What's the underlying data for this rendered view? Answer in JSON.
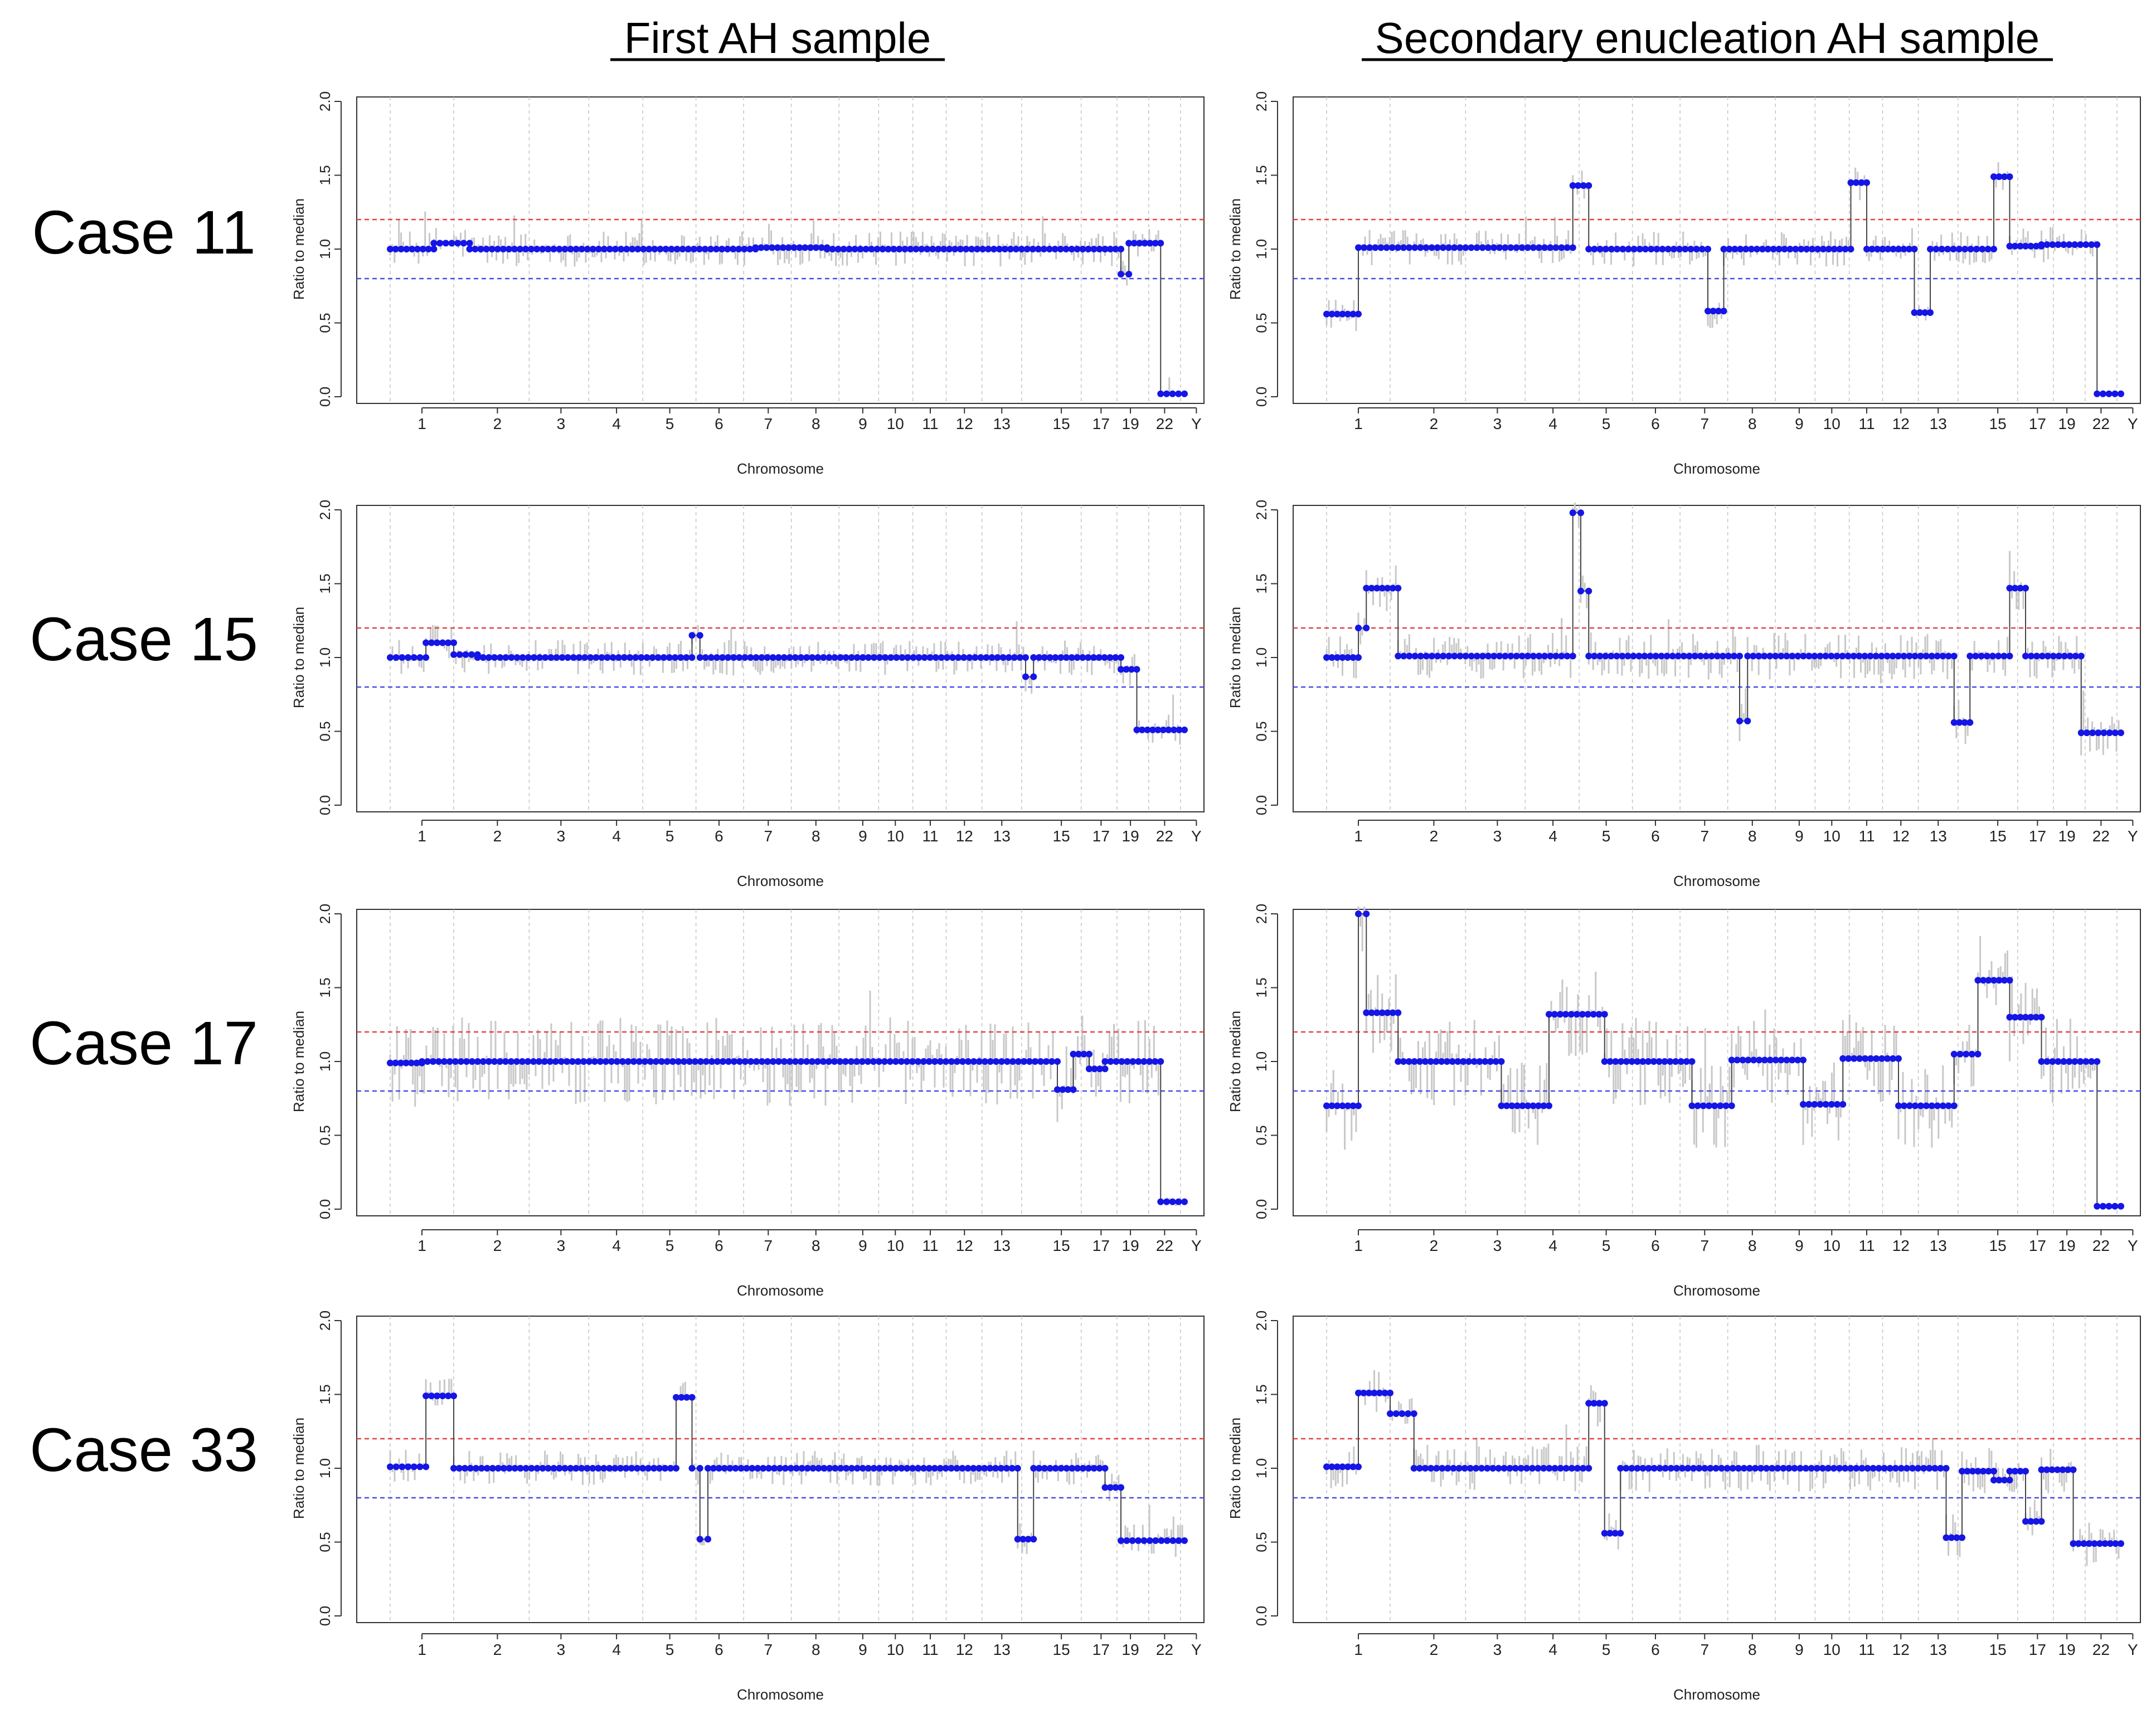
{
  "figure": {
    "column_titles": [
      "First AH sample",
      "Secondary enucleation AH sample"
    ],
    "case_labels": [
      "Case 11",
      "Case 15",
      "Case 17",
      "Case 33"
    ]
  },
  "colors": {
    "segment": "#1515e6",
    "noise": "#c8c8c8",
    "upper_threshold": "#e84040",
    "lower_threshold": "#4a4ae8",
    "axis": "#333333",
    "grid": "#c4c4c4"
  },
  "chart_data": [
    {
      "id": "case11-first",
      "type": "scatter",
      "case": "Case 11",
      "sample": "First AH sample",
      "xlabel": "Chromosome",
      "ylabel": "Ratio to median",
      "ylim": [
        0,
        2
      ],
      "yticks": [
        "0.0",
        "0.5",
        "1.0",
        "1.5",
        "2.0"
      ],
      "thresholds": {
        "upper": 1.2,
        "lower": 0.8
      },
      "noise_level": "low",
      "x_tick_labels": [
        "1",
        "2",
        "3",
        "4",
        "5",
        "6",
        "7",
        "8",
        "9",
        "10",
        "11",
        "12",
        "13",
        "15",
        "17",
        "19",
        "22",
        "Y"
      ],
      "segments": [
        [
          0,
          0.055,
          1.0
        ],
        [
          0.055,
          0.1,
          1.04
        ],
        [
          0.1,
          0.46,
          1.0
        ],
        [
          0.46,
          0.55,
          1.01
        ],
        [
          0.55,
          0.9,
          1.0
        ],
        [
          0.9,
          0.92,
          1.0
        ],
        [
          0.92,
          0.93,
          0.83
        ],
        [
          0.93,
          0.97,
          1.04
        ],
        [
          0.97,
          1.0,
          0.02
        ]
      ]
    },
    {
      "id": "case11-secondary",
      "type": "scatter",
      "case": "Case 11",
      "sample": "Secondary enucleation AH sample",
      "xlabel": "Chromosome",
      "ylabel": "Ratio to median",
      "ylim": [
        0,
        2
      ],
      "yticks": [
        "0.0",
        "0.5",
        "1.0",
        "1.5",
        "2.0"
      ],
      "thresholds": {
        "upper": 1.2,
        "lower": 0.8
      },
      "noise_level": "low",
      "x_tick_labels": [
        "1",
        "2",
        "3",
        "4",
        "5",
        "6",
        "7",
        "8",
        "9",
        "10",
        "11",
        "12",
        "13",
        "15",
        "17",
        "19",
        "22",
        "Y"
      ],
      "segments": [
        [
          0,
          0.04,
          0.56
        ],
        [
          0.04,
          0.31,
          1.01
        ],
        [
          0.31,
          0.33,
          1.43
        ],
        [
          0.33,
          0.48,
          1.0
        ],
        [
          0.48,
          0.5,
          0.58
        ],
        [
          0.5,
          0.66,
          1.0
        ],
        [
          0.66,
          0.68,
          1.45
        ],
        [
          0.68,
          0.7,
          1.0
        ],
        [
          0.7,
          0.74,
          1.0
        ],
        [
          0.74,
          0.76,
          0.57
        ],
        [
          0.76,
          0.84,
          1.0
        ],
        [
          0.84,
          0.86,
          1.49
        ],
        [
          0.86,
          0.9,
          1.02
        ],
        [
          0.9,
          0.97,
          1.03
        ],
        [
          0.97,
          1.0,
          0.02
        ]
      ]
    },
    {
      "id": "case15-first",
      "type": "scatter",
      "case": "Case 15",
      "sample": "First AH sample",
      "xlabel": "Chromosome",
      "ylabel": "Ratio to median",
      "ylim": [
        0,
        2
      ],
      "yticks": [
        "0.0",
        "0.5",
        "1.0",
        "1.5",
        "2.0"
      ],
      "thresholds": {
        "upper": 1.2,
        "lower": 0.8
      },
      "noise_level": "low",
      "x_tick_labels": [
        "1",
        "2",
        "3",
        "4",
        "5",
        "6",
        "7",
        "8",
        "9",
        "10",
        "11",
        "12",
        "13",
        "15",
        "17",
        "19",
        "22",
        "Y"
      ],
      "segments": [
        [
          0,
          0.045,
          1.0
        ],
        [
          0.045,
          0.08,
          1.1
        ],
        [
          0.08,
          0.11,
          1.02
        ],
        [
          0.11,
          0.38,
          1.0
        ],
        [
          0.38,
          0.39,
          1.15
        ],
        [
          0.39,
          0.8,
          1.0
        ],
        [
          0.8,
          0.81,
          0.87
        ],
        [
          0.81,
          0.92,
          1.0
        ],
        [
          0.92,
          0.94,
          0.92
        ],
        [
          0.94,
          1.0,
          0.51
        ]
      ]
    },
    {
      "id": "case15-secondary",
      "type": "scatter",
      "case": "Case 15",
      "sample": "Secondary enucleation AH sample",
      "xlabel": "Chromosome",
      "ylabel": "Ratio to median",
      "ylim": [
        0,
        2
      ],
      "yticks": [
        "0.0",
        "0.5",
        "1.0",
        "1.5",
        "2.0"
      ],
      "thresholds": {
        "upper": 1.2,
        "lower": 0.8
      },
      "noise_level": "medium",
      "x_tick_labels": [
        "1",
        "2",
        "3",
        "4",
        "5",
        "6",
        "7",
        "8",
        "9",
        "10",
        "11",
        "12",
        "13",
        "15",
        "17",
        "19",
        "22",
        "Y"
      ],
      "segments": [
        [
          0,
          0.04,
          1.0
        ],
        [
          0.04,
          0.05,
          1.2
        ],
        [
          0.05,
          0.09,
          1.47
        ],
        [
          0.09,
          0.31,
          1.01
        ],
        [
          0.31,
          0.32,
          1.98
        ],
        [
          0.32,
          0.33,
          1.45
        ],
        [
          0.33,
          0.52,
          1.01
        ],
        [
          0.52,
          0.53,
          0.57
        ],
        [
          0.53,
          0.79,
          1.01
        ],
        [
          0.79,
          0.81,
          0.56
        ],
        [
          0.81,
          0.86,
          1.01
        ],
        [
          0.86,
          0.88,
          1.47
        ],
        [
          0.88,
          0.95,
          1.01
        ],
        [
          0.95,
          1.0,
          0.49
        ]
      ]
    },
    {
      "id": "case17-first",
      "type": "scatter",
      "case": "Case 17",
      "sample": "First AH sample",
      "xlabel": "Chromosome",
      "ylabel": "Ratio to median",
      "ylim": [
        0,
        2
      ],
      "yticks": [
        "0.0",
        "0.5",
        "1.0",
        "1.5",
        "2.0"
      ],
      "thresholds": {
        "upper": 1.2,
        "lower": 0.8
      },
      "noise_level": "high",
      "x_tick_labels": [
        "1",
        "2",
        "3",
        "4",
        "5",
        "6",
        "7",
        "8",
        "9",
        "10",
        "11",
        "12",
        "13",
        "15",
        "17",
        "19",
        "22",
        "Y"
      ],
      "segments": [
        [
          0,
          0.04,
          0.99
        ],
        [
          0.04,
          0.84,
          1.0
        ],
        [
          0.84,
          0.86,
          0.81
        ],
        [
          0.86,
          0.88,
          1.05
        ],
        [
          0.88,
          0.9,
          0.95
        ],
        [
          0.9,
          0.97,
          1.0
        ],
        [
          0.97,
          1.0,
          0.05
        ]
      ]
    },
    {
      "id": "case17-secondary",
      "type": "scatter",
      "case": "Case 17",
      "sample": "Secondary enucleation AH sample",
      "xlabel": "Chromosome",
      "ylabel": "Ratio to median",
      "ylim": [
        0,
        2
      ],
      "yticks": [
        "0.0",
        "0.5",
        "1.0",
        "1.5",
        "2.0"
      ],
      "thresholds": {
        "upper": 1.2,
        "lower": 0.8
      },
      "noise_level": "high",
      "x_tick_labels": [
        "1",
        "2",
        "3",
        "4",
        "5",
        "6",
        "7",
        "8",
        "9",
        "10",
        "11",
        "12",
        "13",
        "15",
        "17",
        "19",
        "22",
        "Y"
      ],
      "segments": [
        [
          0,
          0.04,
          0.7
        ],
        [
          0.04,
          0.05,
          2.0
        ],
        [
          0.05,
          0.09,
          1.33
        ],
        [
          0.09,
          0.22,
          1.0
        ],
        [
          0.22,
          0.28,
          0.7
        ],
        [
          0.28,
          0.35,
          1.32
        ],
        [
          0.35,
          0.46,
          1.0
        ],
        [
          0.46,
          0.51,
          0.7
        ],
        [
          0.51,
          0.6,
          1.01
        ],
        [
          0.6,
          0.65,
          0.71
        ],
        [
          0.65,
          0.72,
          1.02
        ],
        [
          0.72,
          0.79,
          0.7
        ],
        [
          0.79,
          0.82,
          1.05
        ],
        [
          0.82,
          0.86,
          1.55
        ],
        [
          0.86,
          0.9,
          1.3
        ],
        [
          0.9,
          0.97,
          1.0
        ],
        [
          0.97,
          1.0,
          0.02
        ]
      ]
    },
    {
      "id": "case33-first",
      "type": "scatter",
      "case": "Case 33",
      "sample": "First AH sample",
      "xlabel": "Chromosome",
      "ylabel": "Ratio to median",
      "ylim": [
        0,
        2
      ],
      "yticks": [
        "0.0",
        "0.5",
        "1.0",
        "1.5",
        "2.0"
      ],
      "thresholds": {
        "upper": 1.2,
        "lower": 0.8
      },
      "noise_level": "low",
      "x_tick_labels": [
        "1",
        "2",
        "3",
        "4",
        "5",
        "6",
        "7",
        "8",
        "9",
        "10",
        "11",
        "12",
        "13",
        "15",
        "17",
        "19",
        "22",
        "Y"
      ],
      "segments": [
        [
          0,
          0.045,
          1.01
        ],
        [
          0.045,
          0.08,
          1.49
        ],
        [
          0.08,
          0.36,
          1.0
        ],
        [
          0.36,
          0.38,
          1.48
        ],
        [
          0.38,
          0.39,
          1.0
        ],
        [
          0.39,
          0.4,
          0.52
        ],
        [
          0.4,
          0.79,
          1.0
        ],
        [
          0.79,
          0.81,
          0.52
        ],
        [
          0.81,
          0.9,
          1.0
        ],
        [
          0.9,
          0.92,
          0.87
        ],
        [
          0.92,
          1.0,
          0.51
        ]
      ]
    },
    {
      "id": "case33-secondary",
      "type": "scatter",
      "case": "Case 33",
      "sample": "Secondary enucleation AH sample",
      "xlabel": "Chromosome",
      "ylabel": "Ratio to median",
      "ylim": [
        0,
        2
      ],
      "yticks": [
        "0.0",
        "0.5",
        "1.0",
        "1.5",
        "2.0"
      ],
      "thresholds": {
        "upper": 1.2,
        "lower": 0.8
      },
      "noise_level": "medium",
      "x_tick_labels": [
        "1",
        "2",
        "3",
        "4",
        "5",
        "6",
        "7",
        "8",
        "9",
        "10",
        "11",
        "12",
        "13",
        "15",
        "17",
        "19",
        "22",
        "Y"
      ],
      "segments": [
        [
          0,
          0.04,
          1.01
        ],
        [
          0.04,
          0.08,
          1.51
        ],
        [
          0.08,
          0.11,
          1.37
        ],
        [
          0.11,
          0.33,
          1.0
        ],
        [
          0.33,
          0.35,
          1.44
        ],
        [
          0.35,
          0.37,
          0.56
        ],
        [
          0.37,
          0.78,
          1.0
        ],
        [
          0.78,
          0.8,
          0.53
        ],
        [
          0.8,
          0.84,
          0.98
        ],
        [
          0.84,
          0.86,
          0.92
        ],
        [
          0.86,
          0.88,
          0.98
        ],
        [
          0.88,
          0.9,
          0.64
        ],
        [
          0.9,
          0.94,
          0.99
        ],
        [
          0.94,
          1.0,
          0.49
        ]
      ]
    }
  ]
}
